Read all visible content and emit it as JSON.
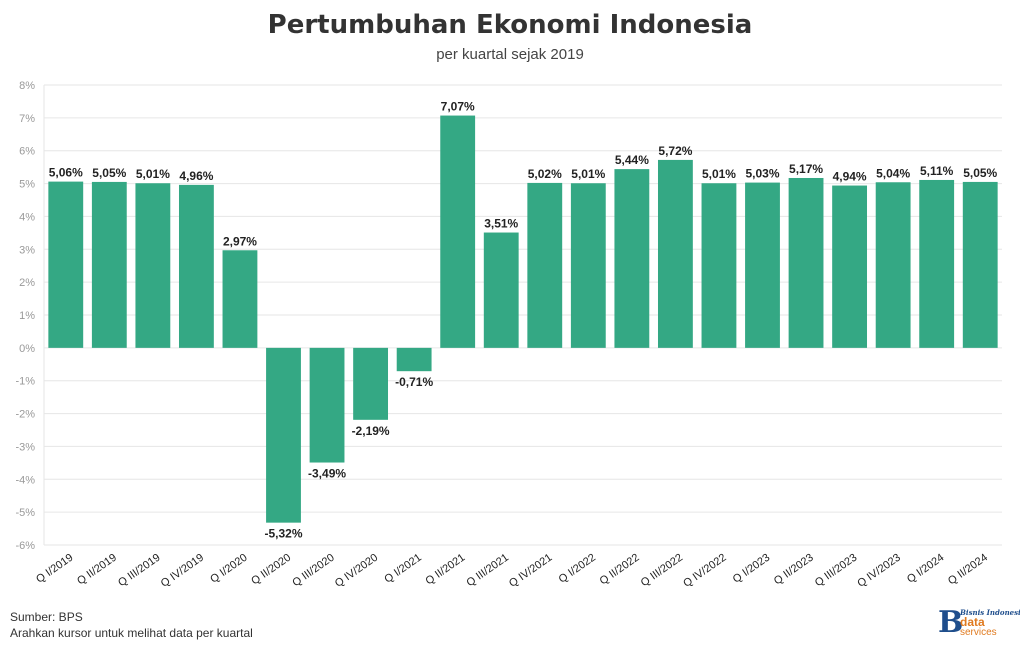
{
  "header": {
    "title": "Pertumbuhan Ekonomi Indonesia",
    "subtitle": "per kuartal sejak 2019"
  },
  "footer": {
    "source": "Sumber: BPS",
    "hint": "Arahkan kursor untuk melihat data per kuartal"
  },
  "logo": {
    "letter": "B",
    "name": "Bisnis Indonesia",
    "line1": "data",
    "line2": "services"
  },
  "colors": {
    "bar": "#34a884",
    "grid": "#e6e6e6",
    "tick": "#999999",
    "label": "#222222"
  },
  "chart_data": {
    "type": "bar",
    "title": "Pertumbuhan Ekonomi Indonesia",
    "subtitle": "per kuartal sejak 2019",
    "categories": [
      "Q I/2019",
      "Q II/2019",
      "Q III/2019",
      "Q IV/2019",
      "Q I/2020",
      "Q II/2020",
      "Q III/2020",
      "Q IV/2020",
      "Q I/2021",
      "Q II/2021",
      "Q III/2021",
      "Q IV/2021",
      "Q I/2022",
      "Q II/2022",
      "Q III/2022",
      "Q IV/2022",
      "Q I/2023",
      "Q II/2023",
      "Q III/2023",
      "Q IV/2023",
      "Q I/2024",
      "Q II/2024"
    ],
    "values": [
      5.06,
      5.05,
      5.01,
      4.96,
      2.97,
      -5.32,
      -3.49,
      -2.19,
      -0.71,
      7.07,
      3.51,
      5.02,
      5.01,
      5.44,
      5.72,
      5.01,
      5.03,
      5.17,
      4.94,
      5.04,
      5.11,
      5.05
    ],
    "labels": [
      "5,06%",
      "5,05%",
      "5,01%",
      "4,96%",
      "2,97%",
      "-5,32%",
      "-3,49%",
      "-2,19%",
      "-0,71%",
      "7,07%",
      "3,51%",
      "5,02%",
      "5,01%",
      "5,44%",
      "5,72%",
      "5,01%",
      "5,03%",
      "5,17%",
      "4,94%",
      "5,04%",
      "5,11%",
      "5,05%"
    ],
    "ylim": [
      -6,
      8
    ],
    "yticks": [
      8,
      7,
      6,
      5,
      4,
      3,
      2,
      1,
      0,
      -1,
      -2,
      -3,
      -4,
      -5,
      -6
    ],
    "ytick_labels": [
      "8%",
      "7%",
      "6%",
      "5%",
      "4%",
      "3%",
      "2%",
      "1%",
      "0%",
      "-1%",
      "-2%",
      "-3%",
      "-4%",
      "-5%",
      "-6%"
    ],
    "grid": true,
    "legend": "none"
  }
}
